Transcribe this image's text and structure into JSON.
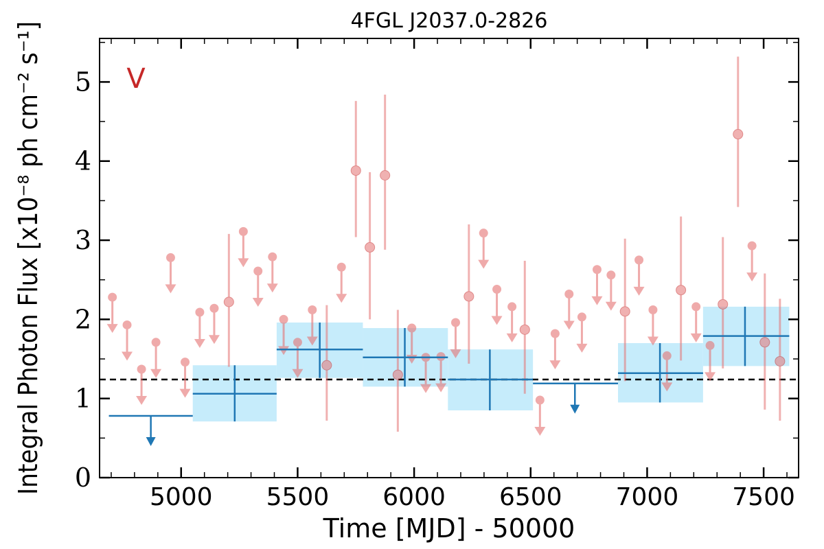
{
  "chart_data": {
    "type": "scatter",
    "title": "4FGL J2037.0-2826",
    "xlabel": "Time [MJD] - 50000",
    "ylabel": "Integral Photon Flux [x10⁻⁸ ph cm⁻² s⁻¹]",
    "panel_tag": "V",
    "xlim": [
      4650,
      7650
    ],
    "ylim": [
      0,
      5.55
    ],
    "x_ticks": [
      5000,
      5500,
      6000,
      6500,
      7000,
      7500
    ],
    "x_tick_labels": [
      "5000",
      "5500",
      "6000",
      "6500",
      "7000",
      "7500"
    ],
    "y_ticks": [
      0,
      1,
      2,
      3,
      4,
      5
    ],
    "y_tick_labels": [
      "0",
      "1",
      "2",
      "3",
      "4",
      "5"
    ],
    "reference_level": 1.24,
    "colors": {
      "short_bins": "#e57373",
      "long_bins": "#1f77b4",
      "long_band": "#c6ecfb",
      "reference_line": "#000000",
      "panel_tag": "#c62828"
    },
    "series": [
      {
        "kind": "short-bin-detections",
        "points": [
          {
            "x": 5205,
            "y": 2.22,
            "ylo": 1.4,
            "yhi": 3.08
          },
          {
            "x": 5625,
            "y": 1.42,
            "ylo": 0.72,
            "yhi": 2.18
          },
          {
            "x": 5750,
            "y": 3.88,
            "ylo": 3.04,
            "yhi": 4.76
          },
          {
            "x": 5810,
            "y": 2.91,
            "ylo": 2.0,
            "yhi": 3.86
          },
          {
            "x": 5875,
            "y": 3.82,
            "ylo": 2.88,
            "yhi": 4.84
          },
          {
            "x": 5930,
            "y": 1.3,
            "ylo": 0.58,
            "yhi": 2.12
          },
          {
            "x": 6235,
            "y": 2.29,
            "ylo": 1.44,
            "yhi": 3.2
          },
          {
            "x": 6475,
            "y": 1.87,
            "ylo": 1.06,
            "yhi": 2.74
          },
          {
            "x": 6905,
            "y": 2.1,
            "ylo": 1.22,
            "yhi": 3.02
          },
          {
            "x": 7145,
            "y": 2.37,
            "ylo": 1.48,
            "yhi": 3.3
          },
          {
            "x": 7325,
            "y": 2.19,
            "ylo": 1.38,
            "yhi": 3.04
          },
          {
            "x": 7390,
            "y": 4.34,
            "ylo": 3.42,
            "yhi": 5.32
          },
          {
            "x": 7505,
            "y": 1.71,
            "ylo": 0.86,
            "yhi": 2.58
          },
          {
            "x": 7570,
            "y": 1.47,
            "ylo": 0.72,
            "yhi": 2.26
          }
        ]
      },
      {
        "kind": "short-bin-upper-limits",
        "points": [
          {
            "x": 4705,
            "y": 2.28
          },
          {
            "x": 4768,
            "y": 1.93
          },
          {
            "x": 4830,
            "y": 1.37
          },
          {
            "x": 4892,
            "y": 1.71
          },
          {
            "x": 4955,
            "y": 2.78
          },
          {
            "x": 5017,
            "y": 1.46
          },
          {
            "x": 5080,
            "y": 2.09
          },
          {
            "x": 5142,
            "y": 2.14
          },
          {
            "x": 5267,
            "y": 3.11
          },
          {
            "x": 5330,
            "y": 2.61
          },
          {
            "x": 5392,
            "y": 2.79
          },
          {
            "x": 5440,
            "y": 2.0
          },
          {
            "x": 5500,
            "y": 1.71
          },
          {
            "x": 5563,
            "y": 2.12
          },
          {
            "x": 5688,
            "y": 2.66
          },
          {
            "x": 5990,
            "y": 1.89
          },
          {
            "x": 6050,
            "y": 1.52
          },
          {
            "x": 6115,
            "y": 1.53
          },
          {
            "x": 6178,
            "y": 1.96
          },
          {
            "x": 6298,
            "y": 3.09
          },
          {
            "x": 6355,
            "y": 2.38
          },
          {
            "x": 6420,
            "y": 2.16
          },
          {
            "x": 6540,
            "y": 0.98
          },
          {
            "x": 6605,
            "y": 1.82
          },
          {
            "x": 6665,
            "y": 2.32
          },
          {
            "x": 6720,
            "y": 2.03
          },
          {
            "x": 6785,
            "y": 2.63
          },
          {
            "x": 6845,
            "y": 2.56
          },
          {
            "x": 6965,
            "y": 2.75
          },
          {
            "x": 7025,
            "y": 2.12
          },
          {
            "x": 7085,
            "y": 1.54
          },
          {
            "x": 7210,
            "y": 2.16
          },
          {
            "x": 7270,
            "y": 1.67
          },
          {
            "x": 7450,
            "y": 2.93
          }
        ]
      },
      {
        "kind": "long-bin-detections",
        "points": [
          {
            "x": 5230,
            "xlo": 5050,
            "xhi": 5410,
            "y": 1.06,
            "ylo": 0.71,
            "yhi": 1.42
          },
          {
            "x": 5595,
            "xlo": 5410,
            "xhi": 5780,
            "y": 1.62,
            "ylo": 1.26,
            "yhi": 1.96
          },
          {
            "x": 5960,
            "xlo": 5780,
            "xhi": 6145,
            "y": 1.52,
            "ylo": 1.15,
            "yhi": 1.89
          },
          {
            "x": 6325,
            "xlo": 6145,
            "xhi": 6510,
            "y": 1.24,
            "ylo": 0.85,
            "yhi": 1.62
          },
          {
            "x": 7055,
            "xlo": 6875,
            "xhi": 7240,
            "y": 1.32,
            "ylo": 0.95,
            "yhi": 1.7
          },
          {
            "x": 7420,
            "xlo": 7240,
            "xhi": 7610,
            "y": 1.79,
            "ylo": 1.41,
            "yhi": 2.16
          }
        ]
      },
      {
        "kind": "long-bin-upper-limits",
        "points": [
          {
            "x": 4870,
            "xlo": 4690,
            "xhi": 5050,
            "y": 0.78
          },
          {
            "x": 6690,
            "xlo": 6510,
            "xhi": 6875,
            "y": 1.19
          }
        ]
      }
    ]
  }
}
